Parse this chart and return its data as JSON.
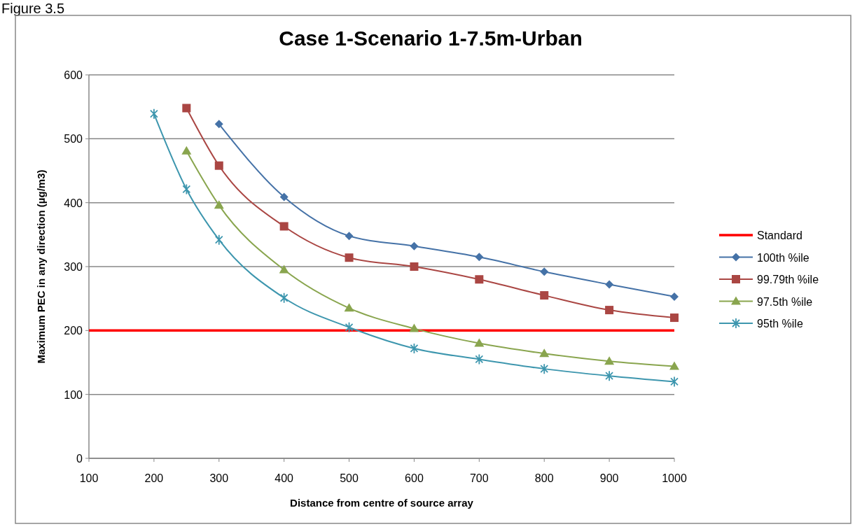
{
  "chart_data": {
    "type": "line",
    "title": "Case 1-Scenario 1-7.5m-Urban",
    "xlabel": "Distance from centre of  source array",
    "ylabel": "Maximum PEC in any direction (µg/m3)",
    "annotations": [
      "Figure 3.5"
    ],
    "xlim": [
      100,
      1000
    ],
    "xticks": [
      100,
      200,
      300,
      400,
      500,
      600,
      700,
      800,
      900,
      1000
    ],
    "ylim": [
      0,
      600
    ],
    "yticks": [
      0,
      100,
      200,
      300,
      400,
      500,
      600
    ],
    "grid": "y",
    "legend": "right",
    "series": [
      {
        "name": "Standard",
        "color": "#ff0000",
        "marker": "none",
        "x": [
          100,
          1000
        ],
        "values": [
          200,
          200
        ]
      },
      {
        "name": "100th %ile",
        "color": "#4572a7",
        "marker": "diamond",
        "x": [
          300,
          400,
          500,
          600,
          700,
          800,
          900,
          1000
        ],
        "values": [
          523,
          409,
          348,
          332,
          315,
          292,
          272,
          253
        ]
      },
      {
        "name": "99.79th %ile",
        "color": "#aa4643",
        "marker": "square",
        "x": [
          250,
          300,
          400,
          500,
          600,
          700,
          800,
          900,
          1000
        ],
        "values": [
          548,
          458,
          363,
          314,
          300,
          280,
          255,
          232,
          220
        ]
      },
      {
        "name": "97.5th %ile",
        "color": "#89a54e",
        "marker": "triangle",
        "x": [
          250,
          300,
          400,
          500,
          600,
          700,
          800,
          900,
          1000
        ],
        "values": [
          481,
          396,
          295,
          235,
          203,
          180,
          164,
          152,
          144
        ]
      },
      {
        "name": "95th %ile",
        "color": "#3d96ae",
        "marker": "cross",
        "x": [
          200,
          250,
          300,
          400,
          500,
          600,
          700,
          800,
          900,
          1000
        ],
        "values": [
          539,
          421,
          342,
          251,
          205,
          172,
          155,
          140,
          129,
          120
        ]
      }
    ]
  }
}
